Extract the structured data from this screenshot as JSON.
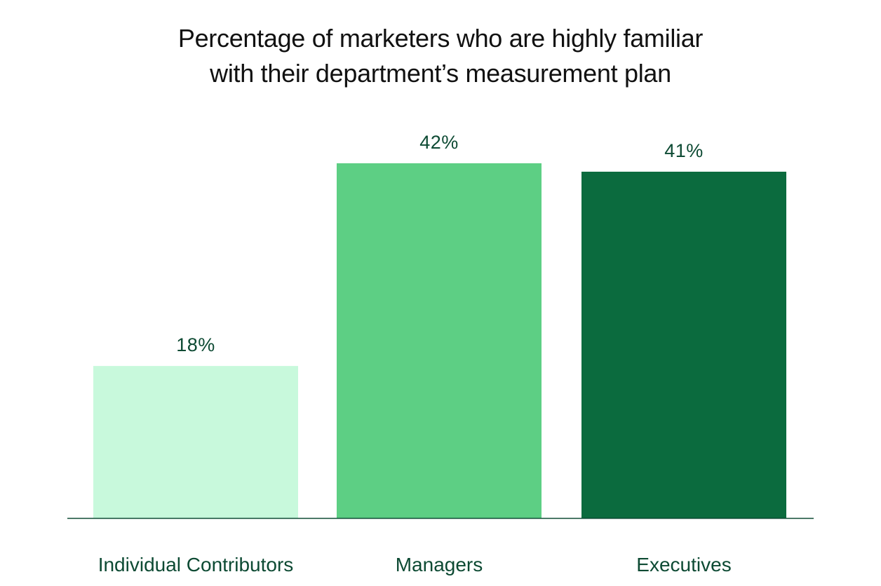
{
  "chart_data": {
    "type": "bar",
    "title_lines": [
      "Percentage of marketers who are highly familiar",
      "with their department’s measurement plan"
    ],
    "categories": [
      "Individual Contributors",
      "Managers",
      "Executives"
    ],
    "values": [
      18,
      42,
      41
    ],
    "value_labels": [
      "18%",
      "42%",
      "41%"
    ],
    "colors": [
      "#c8f9dc",
      "#5dcf84",
      "#0b6b3e"
    ],
    "label_color": "#0d4a33",
    "axis_color": "#0d4a33",
    "xlabel": "",
    "ylabel": "",
    "ylim": [
      0,
      50
    ],
    "grid": false
  }
}
